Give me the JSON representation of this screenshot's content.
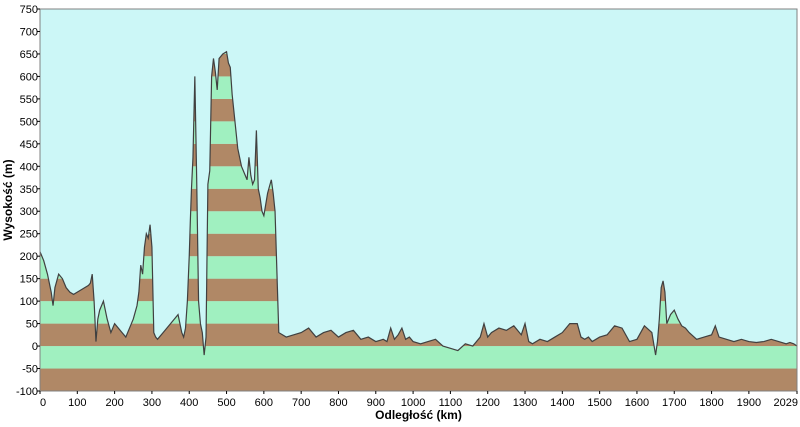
{
  "chart_data": {
    "type": "area",
    "xlabel": "Odległość  (km)",
    "ylabel": "Wysokość (m)",
    "xlim": [
      0,
      2029
    ],
    "ylim": [
      -100,
      750
    ],
    "x_ticks": [
      "0",
      "100",
      "200",
      "300",
      "400",
      "500",
      "600",
      "700",
      "800",
      "900",
      "1000",
      "1100",
      "1200",
      "1300",
      "1400",
      "1500",
      "1600",
      "1700",
      "1800",
      "1900",
      "2029"
    ],
    "y_ticks": [
      "750",
      "700",
      "650",
      "600",
      "550",
      "500",
      "450",
      "400",
      "350",
      "300",
      "250",
      "200",
      "150",
      "100",
      "50",
      "0",
      "-50",
      "-100"
    ],
    "band_step": 50,
    "colors": {
      "plot_background": "#ccf7f7",
      "band_light": "#a0f0c0",
      "band_dark": "#b08866",
      "profile_line": "#404040"
    },
    "series": [
      {
        "x": [
          0,
          10,
          20,
          30,
          35,
          40,
          50,
          60,
          70,
          80,
          90,
          100,
          110,
          120,
          130,
          135,
          140,
          145,
          150,
          155,
          160,
          170,
          180,
          190,
          200,
          210,
          220,
          230,
          240,
          250,
          260,
          265,
          270,
          275,
          280,
          285,
          290,
          295,
          300,
          305,
          310,
          315,
          320,
          330,
          340,
          350,
          360,
          370,
          380,
          385,
          390,
          395,
          400,
          403,
          406,
          410,
          415,
          420,
          425,
          430,
          435,
          440,
          445,
          450,
          455,
          460,
          465,
          470,
          475,
          480,
          490,
          500,
          505,
          510,
          515,
          520,
          525,
          530,
          540,
          550,
          555,
          560,
          565,
          570,
          575,
          580,
          585,
          590,
          595,
          600,
          610,
          620,
          625,
          630,
          640,
          660,
          680,
          700,
          720,
          740,
          760,
          780,
          800,
          820,
          840,
          860,
          880,
          900,
          920,
          930,
          940,
          950,
          960,
          970,
          980,
          990,
          1000,
          1020,
          1040,
          1060,
          1080,
          1100,
          1120,
          1140,
          1160,
          1180,
          1190,
          1200,
          1210,
          1230,
          1250,
          1270,
          1290,
          1300,
          1310,
          1320,
          1340,
          1360,
          1380,
          1400,
          1420,
          1440,
          1450,
          1460,
          1470,
          1480,
          1500,
          1520,
          1540,
          1560,
          1580,
          1600,
          1620,
          1640,
          1650,
          1655,
          1660,
          1665,
          1670,
          1675,
          1680,
          1690,
          1700,
          1710,
          1720,
          1730,
          1740,
          1760,
          1780,
          1800,
          1810,
          1820,
          1840,
          1860,
          1880,
          1900,
          1920,
          1940,
          1960,
          1980,
          2000,
          2010,
          2020,
          2029
        ],
        "y": [
          210,
          190,
          160,
          120,
          90,
          130,
          160,
          150,
          130,
          120,
          115,
          120,
          125,
          130,
          135,
          140,
          160,
          100,
          10,
          60,
          80,
          100,
          60,
          30,
          50,
          40,
          30,
          20,
          40,
          60,
          90,
          120,
          180,
          160,
          220,
          250,
          240,
          270,
          220,
          30,
          20,
          15,
          20,
          30,
          40,
          50,
          60,
          70,
          30,
          20,
          40,
          100,
          200,
          280,
          350,
          420,
          600,
          370,
          100,
          50,
          30,
          -20,
          20,
          360,
          390,
          600,
          640,
          610,
          570,
          640,
          650,
          655,
          630,
          620,
          560,
          520,
          480,
          440,
          400,
          380,
          370,
          420,
          380,
          360,
          370,
          480,
          350,
          330,
          300,
          290,
          340,
          370,
          340,
          300,
          30,
          20,
          25,
          30,
          40,
          20,
          30,
          35,
          20,
          30,
          35,
          15,
          20,
          10,
          15,
          10,
          40,
          15,
          25,
          40,
          15,
          20,
          10,
          5,
          10,
          15,
          0,
          -5,
          -10,
          5,
          0,
          20,
          50,
          20,
          30,
          40,
          35,
          45,
          25,
          50,
          10,
          5,
          15,
          10,
          20,
          30,
          50,
          50,
          20,
          15,
          20,
          10,
          20,
          25,
          45,
          40,
          10,
          15,
          45,
          30,
          -20,
          10,
          60,
          130,
          145,
          120,
          50,
          70,
          80,
          60,
          45,
          40,
          30,
          15,
          20,
          25,
          45,
          20,
          15,
          10,
          15,
          10,
          8,
          10,
          15,
          10,
          5,
          8,
          5,
          0
        ]
      }
    ]
  }
}
